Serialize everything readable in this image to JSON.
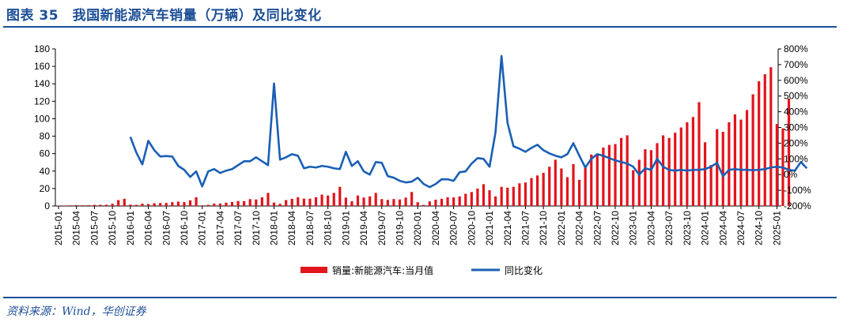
{
  "title": "图表 35　我国新能源汽车销量（万辆）及同比变化",
  "source": "资料来源：Wind，华创证券",
  "chart_data": {
    "type": "bar+line",
    "title": "图表 35　我国新能源汽车销量（万辆）及同比变化",
    "left_axis": {
      "ylim": [
        0,
        180
      ],
      "ticks": [
        "0",
        "20",
        "40",
        "60",
        "80",
        "100",
        "120",
        "140",
        "160",
        "180"
      ]
    },
    "right_axis": {
      "ylim": [
        -200,
        800
      ],
      "ticks": [
        "-200%",
        "-100%",
        "0%",
        "100%",
        "200%",
        "300%",
        "400%",
        "500%",
        "600%",
        "700%",
        "800%"
      ]
    },
    "x_tick_labels": [
      "2015-01",
      "2015-04",
      "2015-07",
      "2015-10",
      "2016-01",
      "2016-04",
      "2016-07",
      "2016-10",
      "2017-01",
      "2017-04",
      "2017-07",
      "2017-10",
      "2018-01",
      "2018-04",
      "2018-07",
      "2018-10",
      "2019-01",
      "2019-04",
      "2019-07",
      "2019-10",
      "2020-01",
      "2020-04",
      "2020-07",
      "2020-10",
      "2021-01",
      "2021-04",
      "2021-07",
      "2021-10",
      "2022-01",
      "2022-04",
      "2022-07",
      "2022-10",
      "2023-01",
      "2023-04",
      "2023-07",
      "2023-10",
      "2024-01",
      "2024-04",
      "2024-07",
      "2024-10",
      "2025-01"
    ],
    "start_month": "2015-01",
    "legend": [
      "销量:新能源汽车:当月值",
      "同比变化"
    ],
    "legend_position": "bottom",
    "colors": {
      "bars": "#e2141c",
      "line": "#1a5fb4"
    },
    "series": [
      {
        "name": "销量:新能源汽车:当月值",
        "type": "bar",
        "axis": "left",
        "values": [
          0.5,
          0.6,
          0.7,
          1,
          0.8,
          1,
          1.3,
          1.4,
          1.5,
          2.6,
          6.8,
          8.3,
          1.6,
          1.3,
          2.7,
          2.4,
          3.2,
          3.4,
          3.5,
          4.4,
          5,
          4.5,
          6.5,
          10,
          0.7,
          1.4,
          2.8,
          2.8,
          3.8,
          4.6,
          5.7,
          5.6,
          7.9,
          7.5,
          10,
          15,
          3.9,
          2.5,
          6.8,
          8.2,
          10,
          8.5,
          8.4,
          10,
          13,
          12,
          15,
          22,
          9.6,
          5.4,
          12,
          9.7,
          11,
          15,
          7.9,
          7,
          8,
          7.5,
          9.6,
          16,
          4.4,
          1.3,
          5.3,
          7.2,
          8.2,
          10,
          9.8,
          11,
          14,
          16,
          20,
          25,
          18,
          11,
          22,
          21,
          22,
          26,
          27,
          32,
          35,
          38,
          45,
          53,
          43,
          33,
          48,
          30,
          44,
          59,
          59,
          67,
          70,
          71,
          78,
          81,
          41,
          53,
          65,
          64,
          72,
          81,
          78,
          84,
          90,
          96,
          102,
          119,
          73,
          47,
          88,
          85,
          96,
          105,
          99,
          110,
          128,
          143,
          151,
          159,
          94,
          89,
          123
        ]
      },
      {
        "name": "同比变化",
        "type": "line",
        "axis": "right",
        "start_month": "2016-01",
        "values": [
          240,
          140,
          65,
          215,
          155,
          115,
          118,
          115,
          55,
          30,
          -15,
          20,
          -75,
          20,
          35,
          10,
          25,
          35,
          60,
          85,
          85,
          110,
          85,
          60,
          580,
          95,
          110,
          130,
          120,
          40,
          50,
          45,
          55,
          50,
          40,
          35,
          145,
          55,
          85,
          20,
          0,
          80,
          75,
          -10,
          -20,
          -40,
          -50,
          -45,
          -20,
          -60,
          -80,
          -60,
          -30,
          -30,
          -40,
          15,
          20,
          70,
          105,
          100,
          50,
          270,
          755,
          330,
          180,
          165,
          145,
          170,
          190,
          155,
          135,
          120,
          110,
          130,
          200,
          120,
          45,
          100,
          130,
          120,
          105,
          90,
          80,
          70,
          50,
          0,
          40,
          30,
          100,
          50,
          30,
          25,
          30,
          25,
          30,
          30,
          35,
          50,
          75,
          -10,
          30,
          35,
          30,
          30,
          28,
          30,
          35,
          45,
          50,
          45,
          30,
          25,
          80,
          40
        ]
      }
    ]
  }
}
